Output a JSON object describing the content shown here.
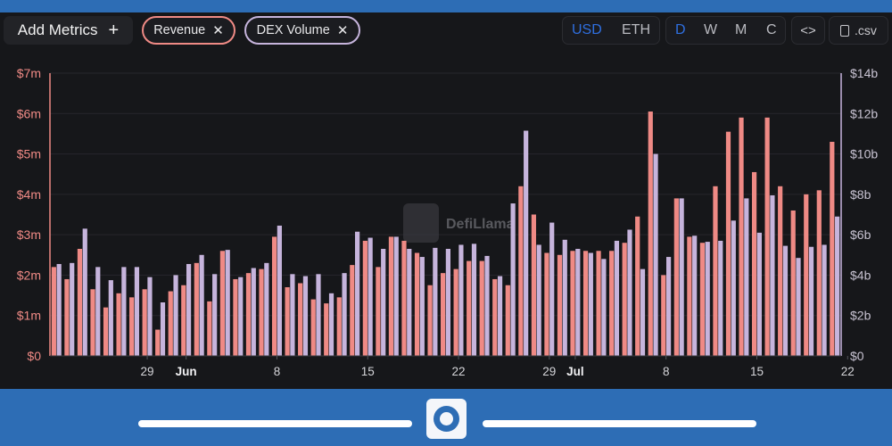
{
  "toolbar": {
    "add_metrics_label": "Add Metrics",
    "add_icon": "plus-icon",
    "pills": [
      {
        "label": "Revenue",
        "color": "#ef8a85"
      },
      {
        "label": "DEX Volume",
        "color": "#c6b4dc"
      }
    ],
    "close_icon": "close-icon",
    "currency_options": [
      "USD",
      "ETH"
    ],
    "currency_selected": "USD",
    "interval_options": [
      "D",
      "W",
      "M",
      "C"
    ],
    "interval_selected": "D",
    "embed_label": "<>",
    "embed_icon": "code-icon",
    "csv_label": ".csv",
    "csv_icon": "file-icon"
  },
  "watermark": {
    "text": "DefiLlama",
    "icon": "llama-logo-icon"
  },
  "colors": {
    "revenue": "#ef8a85",
    "dex_volume": "#c6b4dc",
    "active": "#2f6fe0",
    "background": "#16171a"
  },
  "chart_data": {
    "type": "bar",
    "title": "",
    "series": [
      {
        "name": "Revenue",
        "axis": "left",
        "unit": "$m",
        "values": [
          2.2,
          1.9,
          2.65,
          1.65,
          1.2,
          1.55,
          1.45,
          1.65,
          0.65,
          1.6,
          1.75,
          2.3,
          1.35,
          2.6,
          1.9,
          2.05,
          2.15,
          2.95,
          1.7,
          1.8,
          1.4,
          1.3,
          1.45,
          2.25,
          2.85,
          2.2,
          2.95,
          2.85,
          2.55,
          1.75,
          2.05,
          2.15,
          2.35,
          2.35,
          1.9,
          1.75,
          4.2,
          3.5,
          2.55,
          2.5,
          2.6,
          2.6,
          2.6,
          2.6,
          2.8,
          3.45,
          6.05,
          2.0,
          3.9,
          2.95,
          2.8,
          4.2,
          5.55,
          5.9,
          4.55,
          5.9,
          4.2,
          3.6,
          4.0,
          4.1,
          5.3
        ]
      },
      {
        "name": "DEX Volume",
        "axis": "right",
        "unit": "$b",
        "values": [
          4.55,
          4.6,
          6.3,
          4.4,
          3.75,
          4.4,
          4.4,
          3.9,
          2.65,
          4.0,
          4.55,
          5.0,
          4.05,
          5.25,
          3.9,
          4.35,
          4.6,
          6.45,
          4.05,
          3.95,
          4.05,
          3.1,
          4.1,
          6.15,
          5.85,
          5.3,
          5.9,
          5.3,
          4.9,
          5.35,
          5.3,
          5.5,
          5.55,
          4.95,
          3.95,
          7.55,
          11.15,
          5.5,
          6.6,
          5.75,
          5.3,
          5.1,
          4.8,
          5.7,
          6.25,
          4.3,
          10.0,
          4.9,
          7.8,
          5.95,
          5.65,
          5.7,
          6.7,
          7.8,
          6.1,
          7.95,
          5.45,
          4.85,
          5.4,
          5.5,
          6.9
        ]
      }
    ],
    "y_left": {
      "min": 0,
      "max": 7,
      "ticks": [
        "$0",
        "$1m",
        "$2m",
        "$3m",
        "$4m",
        "$5m",
        "$6m",
        "$7m"
      ]
    },
    "y_right": {
      "min": 0,
      "max": 14,
      "ticks": [
        "$0",
        "$2b",
        "$4b",
        "$6b",
        "$8b",
        "$10b",
        "$12b",
        "$14b"
      ]
    },
    "x_ticks": [
      {
        "label": "29",
        "index": 7,
        "bold": false
      },
      {
        "label": "Jun",
        "index": 10,
        "bold": true
      },
      {
        "label": "8",
        "index": 17,
        "bold": false
      },
      {
        "label": "15",
        "index": 24,
        "bold": false
      },
      {
        "label": "22",
        "index": 31,
        "bold": false
      },
      {
        "label": "29",
        "index": 38,
        "bold": false
      },
      {
        "label": "Jul",
        "index": 40,
        "bold": true
      },
      {
        "label": "8",
        "index": 47,
        "bold": false
      },
      {
        "label": "15",
        "index": 54,
        "bold": false
      },
      {
        "label": "22",
        "index": 61,
        "bold": false
      }
    ],
    "grid": true,
    "legend": "top-left"
  }
}
